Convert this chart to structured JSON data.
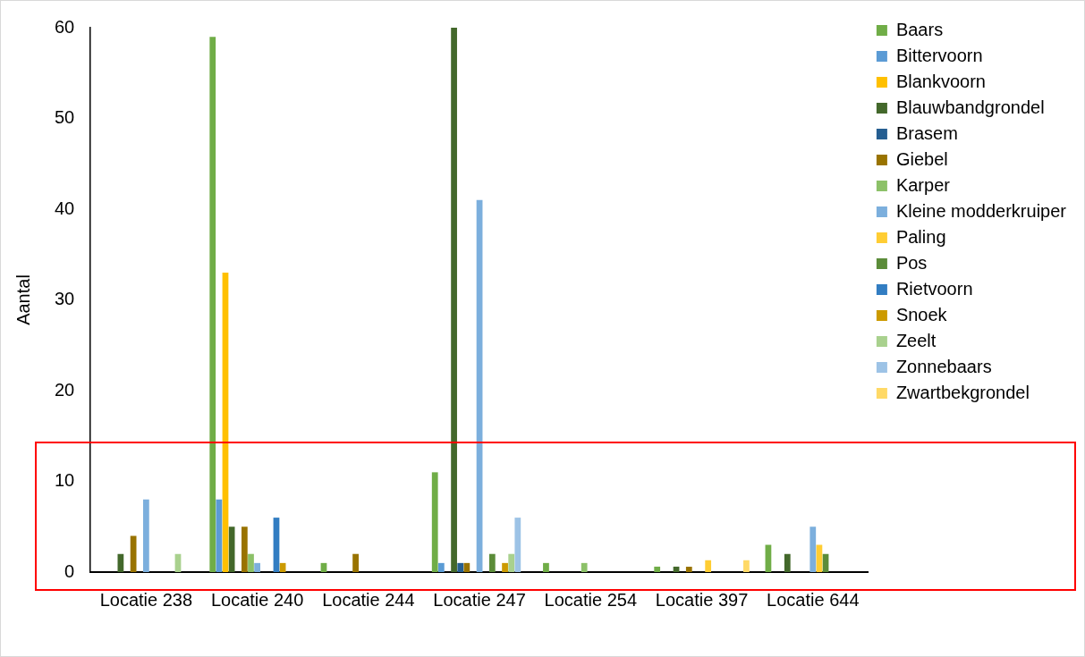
{
  "chart_data": {
    "type": "bar",
    "ylabel": "Aantal",
    "categories": [
      "Locatie 238",
      "Locatie 240",
      "Locatie 244",
      "Locatie 247",
      "Locatie 254",
      "Locatie 397",
      "Locatie 644"
    ],
    "ylim": [
      0,
      60
    ],
    "yticks": [
      0,
      10,
      20,
      30,
      40,
      50,
      60
    ],
    "grid": false,
    "legend": "top right",
    "series": [
      {
        "name": "Baars",
        "color": "#70ad47",
        "values": [
          null,
          59,
          1,
          11,
          1,
          0.6,
          3
        ]
      },
      {
        "name": "Bittervoorn",
        "color": "#5b9bd5",
        "values": [
          null,
          8,
          null,
          1,
          null,
          null,
          null
        ]
      },
      {
        "name": "Blankvoorn",
        "color": "#ffc000",
        "values": [
          null,
          33,
          null,
          null,
          null,
          null,
          null
        ]
      },
      {
        "name": "Blauwbandgrondel",
        "color": "#43682b",
        "values": [
          2,
          5,
          null,
          60,
          null,
          0.6,
          2
        ]
      },
      {
        "name": "Brasem",
        "color": "#255e91",
        "values": [
          null,
          null,
          null,
          1,
          null,
          null,
          null
        ]
      },
      {
        "name": "Giebel",
        "color": "#997300",
        "values": [
          4,
          5,
          2,
          1,
          null,
          0.6,
          null
        ]
      },
      {
        "name": "Karper",
        "color": "#8cc168",
        "values": [
          null,
          2,
          null,
          null,
          1,
          null,
          null
        ]
      },
      {
        "name": "Kleine modderkruiper",
        "color": "#7cafdd",
        "values": [
          8,
          1,
          null,
          41,
          null,
          null,
          5
        ]
      },
      {
        "name": "Paling",
        "color": "#ffcd33",
        "values": [
          null,
          null,
          null,
          null,
          null,
          1.3,
          3
        ]
      },
      {
        "name": "Pos",
        "color": "#5b8c39",
        "values": [
          null,
          null,
          null,
          2,
          null,
          null,
          2
        ]
      },
      {
        "name": "Rietvoorn",
        "color": "#327dc2",
        "values": [
          null,
          6,
          null,
          null,
          null,
          null,
          null
        ]
      },
      {
        "name": "Snoek",
        "color": "#cc9a00",
        "values": [
          null,
          1,
          null,
          1,
          null,
          null,
          null
        ]
      },
      {
        "name": "Zeelt",
        "color": "#a9d18e",
        "values": [
          2,
          null,
          null,
          2,
          null,
          null,
          null
        ]
      },
      {
        "name": "Zonnebaars",
        "color": "#9dc3e6",
        "values": [
          null,
          null,
          null,
          6,
          null,
          null,
          null
        ]
      },
      {
        "name": "Zwartbekgrondel",
        "color": "#ffd966",
        "values": [
          null,
          null,
          null,
          null,
          null,
          1.3,
          null
        ]
      }
    ]
  }
}
